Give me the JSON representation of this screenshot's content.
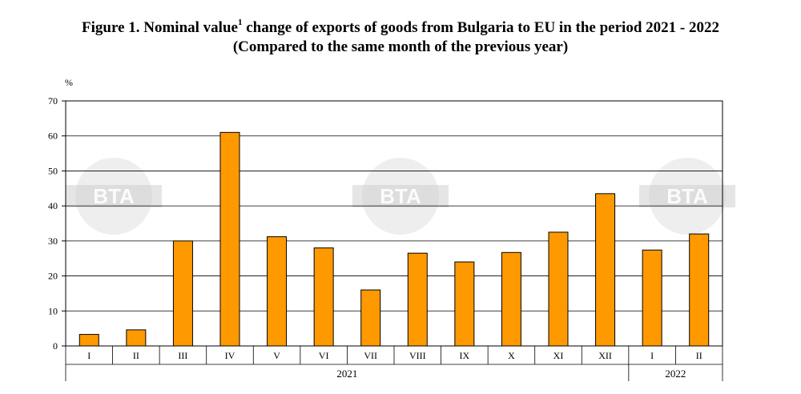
{
  "title": {
    "prefix": "Figure 1. Nominal value",
    "superscript": "1",
    "suffix": " change of exports of goods from Bulgaria to EU in the period 2021 - 2022",
    "subtitle": "(Compared to the same month of the previous year)"
  },
  "watermark": "BTA",
  "chart_data": {
    "type": "bar",
    "title": "Figure 1. Nominal value1 change of exports of goods from Bulgaria to EU in the period 2021 - 2022",
    "subtitle": "(Compared to the same month of the previous year)",
    "ylabel": "%",
    "xlabel": "",
    "ylim": [
      0,
      70
    ],
    "yticks": [
      0,
      10,
      20,
      30,
      40,
      50,
      60,
      70
    ],
    "grid": true,
    "legend": "none",
    "categories": [
      "I",
      "II",
      "III",
      "IV",
      "V",
      "VI",
      "VII",
      "VIII",
      "IX",
      "X",
      "XI",
      "XII",
      "I",
      "II"
    ],
    "groups": [
      {
        "label": "2021",
        "count": 12
      },
      {
        "label": "2022",
        "count": 2
      }
    ],
    "values": [
      3.3,
      4.6,
      30.0,
      61.0,
      31.2,
      28.0,
      16.0,
      26.5,
      24.0,
      26.7,
      32.5,
      43.5,
      27.4,
      32.0
    ],
    "bar_color": "#ff9900"
  }
}
